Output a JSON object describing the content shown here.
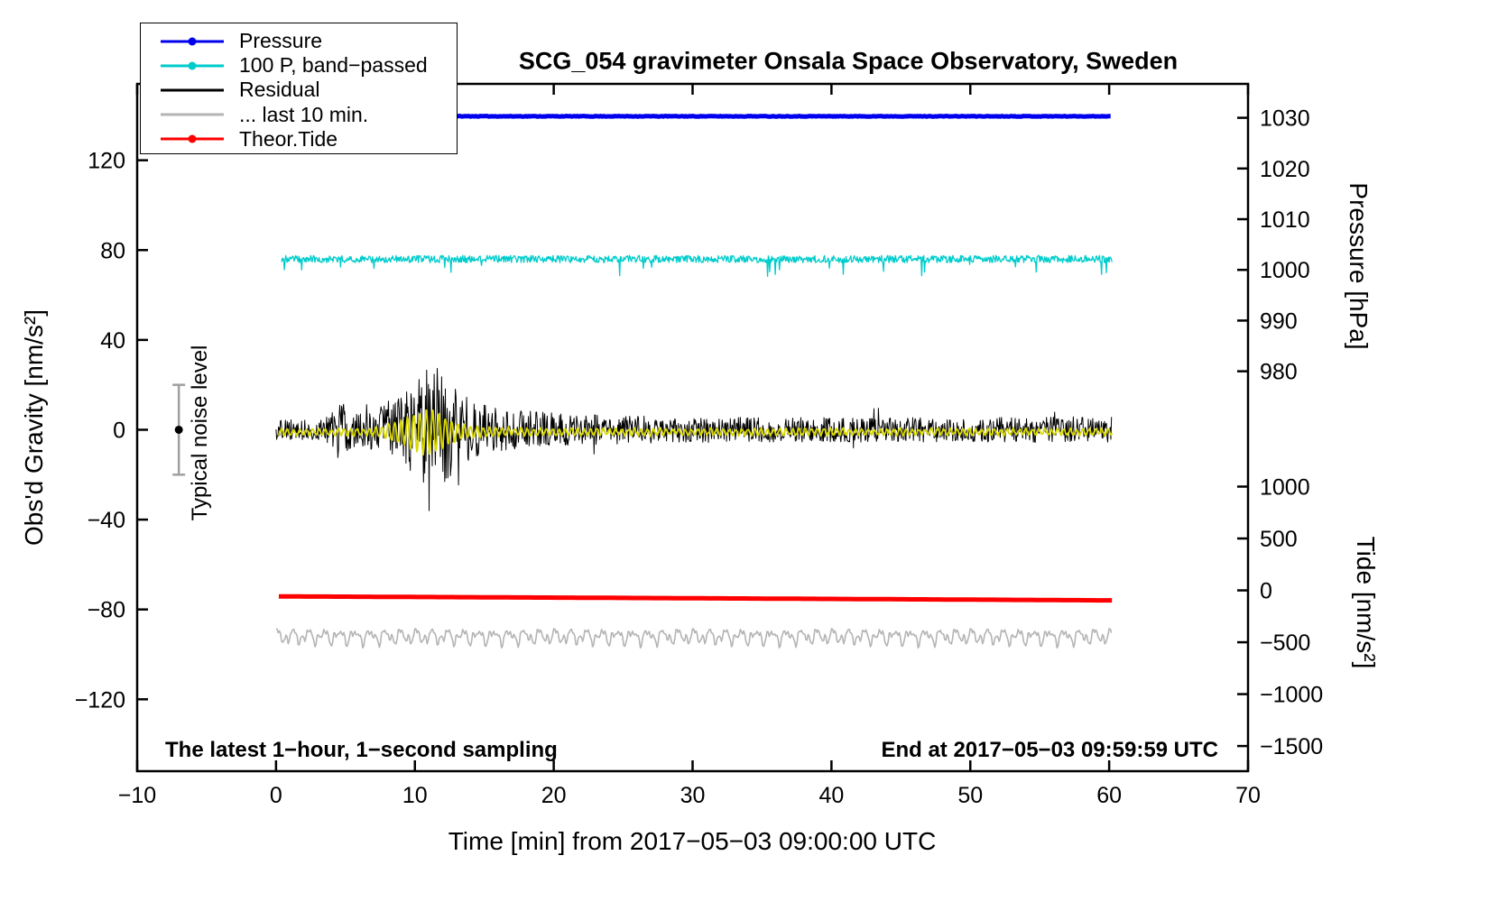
{
  "chart_data": {
    "type": "line",
    "title": "SCG_054 gravimeter Onsala Space Observatory, Sweden",
    "annotations": {
      "bottom_left": "The latest 1−hour, 1−second sampling",
      "bottom_right": "End at 2017−05−03 09:59:59 UTC",
      "noise_label": "Typical noise level"
    },
    "axes": {
      "x": {
        "label": "Time [min] from 2017−05−03 09:00:00 UTC",
        "lim": [
          -10,
          70
        ],
        "ticks": [
          -10,
          0,
          10,
          20,
          30,
          40,
          50,
          60,
          70
        ]
      },
      "gravity": {
        "label": "Obs'd Gravity [nm/s²]",
        "lim": [
          -152,
          154
        ],
        "ticks": [
          120,
          80,
          40,
          0,
          -40,
          -80,
          -120
        ]
      },
      "pressure": {
        "label": "Pressure [hPa]",
        "ticks": [
          1030,
          1020,
          1010,
          1000,
          990,
          980
        ],
        "map": {
          "v0": 1030,
          "g0": 138.9,
          "g_per_unit": 2.257
        }
      },
      "tide": {
        "label": "Tide [nm/s²]",
        "ticks": [
          1000,
          500,
          0,
          -500,
          -1000,
          -1500
        ],
        "map": {
          "v0": 0,
          "g0": -71.5,
          "g_per_unit": 0.0462
        }
      }
    },
    "legend": [
      {
        "label": "Pressure",
        "color": "#0000ee",
        "marker": true
      },
      {
        "label": "100 P, band−passed",
        "color": "#00cccc",
        "marker": true
      },
      {
        "label": "Residual",
        "color": "#000000",
        "marker": false
      },
      {
        "label": "... last 10 min.",
        "color": "#b4b4b4",
        "marker": false
      },
      {
        "label": "Theor.Tide",
        "color": "#ff0000",
        "marker": true
      }
    ],
    "noise_bar": {
      "x": -7,
      "center": 0,
      "halfspan": 20,
      "bar_color": "#a0a0a0",
      "dot_color": "#000000"
    },
    "series": [
      {
        "name": "Pressure",
        "color": "#0000ee",
        "width": 5,
        "axis": "pressure",
        "type": "noise",
        "x_range": [
          0.1,
          60.2
        ],
        "dt": 0.1,
        "base": 1030.3,
        "noise_amp": 0.06,
        "seed": 11
      },
      {
        "name": "100 P, band−passed",
        "color": "#00cccc",
        "width": 1.3,
        "axis": "gravity",
        "type": "noise",
        "x_range": [
          0.4,
          60.2
        ],
        "dt": 0.05,
        "base": 76,
        "noise_amp": 1.6,
        "spike_prob": 0.012,
        "spike_scale": -3,
        "seed": 23
      },
      {
        "name": "... last 10 min.",
        "color": "#b4b4b4",
        "width": 1.6,
        "axis": "gravity",
        "type": "smooth",
        "x_range": [
          0,
          60.2
        ],
        "dt": 0.08,
        "base": -92,
        "components": [
          [
            0.9,
            2.2
          ],
          [
            1.7,
            1.5
          ],
          [
            2.6,
            1.1
          ],
          [
            4.1,
            0.8
          ]
        ],
        "seed": 51
      },
      {
        "name": "Theor.Tide",
        "color": "#ff0000",
        "width": 5,
        "axis": "tide",
        "type": "poly",
        "x_range": [
          0.2,
          60.3
        ],
        "dt": 0.5,
        "coeffs": [
          -58,
          -0.55,
          -0.0015
        ]
      },
      {
        "name": "Residual",
        "color": "#000000",
        "width": 1,
        "axis": "gravity",
        "type": "noise_env",
        "x_range": [
          0,
          60.2
        ],
        "dt": 0.045,
        "base": 0,
        "envelope": [
          [
            0,
            4.5
          ],
          [
            3,
            4.5
          ],
          [
            3.8,
            6
          ],
          [
            4.5,
            13
          ],
          [
            5,
            11
          ],
          [
            5.5,
            8
          ],
          [
            6,
            7
          ],
          [
            7,
            9
          ],
          [
            8,
            13
          ],
          [
            9,
            15
          ],
          [
            10,
            20
          ],
          [
            10.5,
            28
          ],
          [
            11,
            38
          ],
          [
            11.5,
            30
          ],
          [
            12,
            24
          ],
          [
            12.7,
            20
          ],
          [
            13.5,
            15
          ],
          [
            14.5,
            13
          ],
          [
            15.5,
            10
          ],
          [
            17,
            9
          ],
          [
            19,
            8
          ],
          [
            21,
            7
          ],
          [
            24,
            6.5
          ],
          [
            28,
            6
          ],
          [
            34,
            5.5
          ],
          [
            42,
            5.5
          ],
          [
            50,
            5.5
          ],
          [
            60.2,
            6
          ]
        ],
        "seed": 37
      },
      {
        "name": "Residual smoothed",
        "color": "#d8d800",
        "width": 1.8,
        "axis": "gravity",
        "type": "osc",
        "x_range": [
          0.2,
          60.2
        ],
        "dt": 0.05,
        "base": -1,
        "freq": 2.2,
        "noise_amp": 0.6,
        "envelope": [
          [
            0,
            1.2
          ],
          [
            7,
            1.5
          ],
          [
            8,
            3
          ],
          [
            9,
            5
          ],
          [
            10,
            8
          ],
          [
            10.8,
            10
          ],
          [
            11.5,
            9
          ],
          [
            12.5,
            5
          ],
          [
            13.5,
            3
          ],
          [
            15,
            2
          ],
          [
            18,
            1.5
          ],
          [
            30,
            1.3
          ],
          [
            60.2,
            1.3
          ]
        ],
        "seed": 77
      }
    ]
  }
}
